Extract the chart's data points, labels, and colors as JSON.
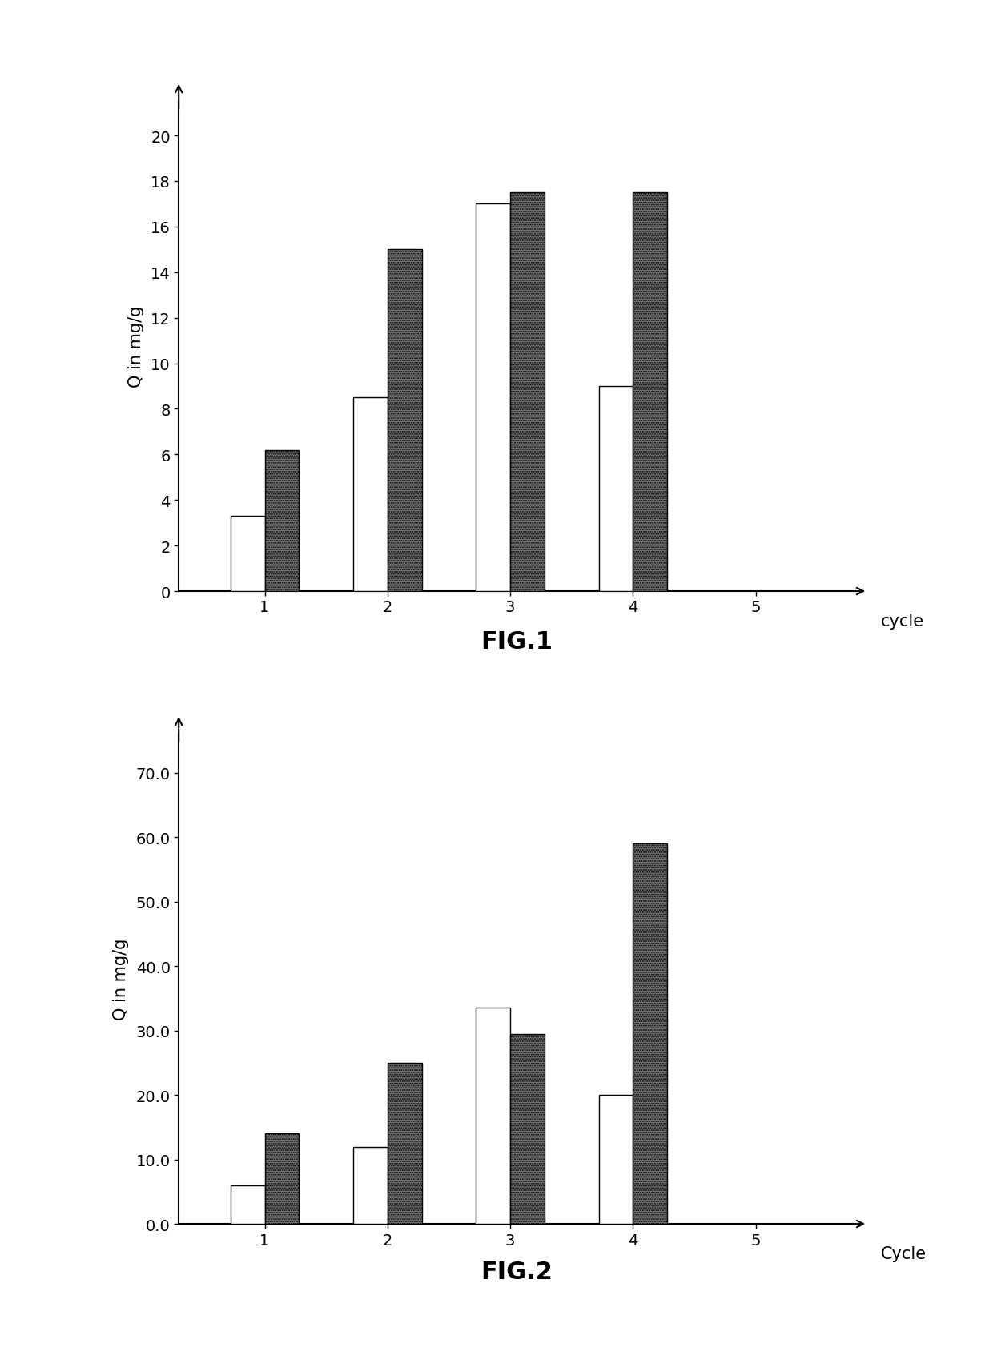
{
  "fig1": {
    "title": "FIG.1",
    "ylabel": "Q in mg/g",
    "xlabel": "cycle",
    "yticks": [
      0,
      2,
      4,
      6,
      8,
      10,
      12,
      14,
      16,
      18,
      20
    ],
    "xticks": [
      1,
      2,
      3,
      4,
      5
    ],
    "ylim": [
      0,
      21.5
    ],
    "xlim": [
      0.3,
      5.8
    ],
    "bar1_values": [
      3.3,
      8.5,
      17.0,
      9.0
    ],
    "bar2_values": [
      6.2,
      15.0,
      17.5,
      17.5
    ],
    "bar_positions": [
      1,
      2,
      3,
      4
    ],
    "bar_width": 0.28,
    "bar1_color": "#ffffff",
    "bar2_color": "#777777",
    "bar1_edgecolor": "#000000",
    "bar2_edgecolor": "#000000"
  },
  "fig2": {
    "title": "FIG.2",
    "ylabel": "Q in mg/g",
    "xlabel": "Cycle",
    "yticks": [
      0.0,
      10.0,
      20.0,
      30.0,
      40.0,
      50.0,
      60.0,
      70.0
    ],
    "xticks": [
      1,
      2,
      3,
      4,
      5
    ],
    "ylim": [
      0,
      76
    ],
    "xlim": [
      0.3,
      5.8
    ],
    "bar1_values": [
      6.0,
      12.0,
      33.5,
      20.0
    ],
    "bar2_values": [
      14.0,
      25.0,
      29.5,
      59.0
    ],
    "bar_positions": [
      1,
      2,
      3,
      4
    ],
    "bar_width": 0.28,
    "bar1_color": "#ffffff",
    "bar2_color": "#777777",
    "bar1_edgecolor": "#000000",
    "bar2_edgecolor": "#000000"
  },
  "background_color": "#ffffff",
  "title_fontsize": 22,
  "label_fontsize": 15,
  "tick_fontsize": 14
}
